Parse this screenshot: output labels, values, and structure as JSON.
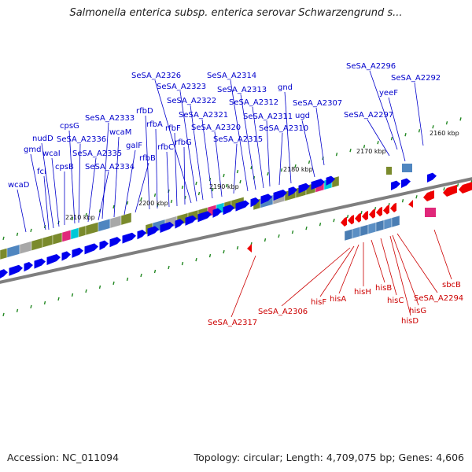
{
  "title": "Salmonella enterica subsp. enterica serovar Schwarzengrund s...",
  "footer": {
    "accession": "Accession: NC_011094",
    "summary": "Topology: circular; Length: 4,709,075 bp; Genes: 4,606"
  },
  "colors": {
    "forward_gene": "#0000ee",
    "reverse_gene": "#ee0000",
    "forward_label": "#0000cc",
    "reverse_label": "#cc0000",
    "backbone": "#7f7f7f",
    "cog_olive": "#7a8a2c",
    "cog_cyan": "#00c8d8",
    "cog_steel": "#4f86c0",
    "cog_grey": "#a8a8a8",
    "cog_magenta": "#e0287a",
    "tick_green": "#228822"
  },
  "ticks": [
    "2160 kbp",
    "2170 kbp",
    "2180 kbp",
    "2190 kbp",
    "2200 kbp",
    "2210 kbp"
  ],
  "forward_labels": [
    "wcaD",
    "gmd",
    "fcl",
    "nudD",
    "wcaI",
    "cpsB",
    "cpsG",
    "SeSA_A2336",
    "SeSA_A2335",
    "SeSA_A2334",
    "SeSA_A2333",
    "wcaM",
    "galF",
    "rfbB",
    "rfbD",
    "rfbA",
    "rfbC",
    "rfbF",
    "rfbG",
    "SeSA_A2326",
    "SeSA_A2323",
    "SeSA_A2322",
    "SeSA_A2321",
    "SeSA_A2320",
    "SeSA_A2315",
    "SeSA_A2314",
    "SeSA_A2313",
    "SeSA_A2312",
    "SeSA_A2311",
    "SeSA_A2310",
    "gnd",
    "ugd",
    "SeSA_A2307",
    "SeSA_A2297",
    "yeeF",
    "SeSA_A2296",
    "SeSA_A2292"
  ],
  "reverse_labels": [
    "SeSA_A2317",
    "SeSA_A2306",
    "hisF",
    "hisA",
    "hisH",
    "hisB",
    "hisC",
    "hisD",
    "hisG",
    "SeSA_A2294",
    "sbcB"
  ]
}
